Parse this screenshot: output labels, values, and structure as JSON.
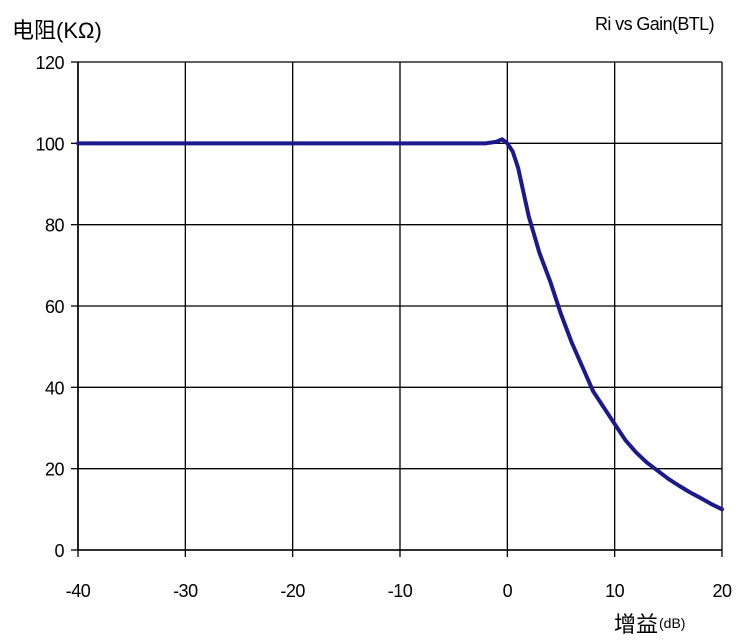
{
  "chart_data": {
    "type": "line",
    "title": "Ri vs Gain(BTL)",
    "ylabel": "电阻(KΩ)",
    "xlabel_main": "增益",
    "xlabel_unit": "(dB)",
    "xlim": [
      -40,
      20
    ],
    "ylim": [
      0,
      120
    ],
    "xticks": [
      -40,
      -30,
      -20,
      -10,
      0,
      10,
      20
    ],
    "yticks": [
      0,
      20,
      40,
      60,
      80,
      100,
      120
    ],
    "xtick_labels": [
      "-40",
      "-30",
      "-20",
      "-10",
      "0",
      "10",
      "20"
    ],
    "ytick_labels": [
      "0",
      "20",
      "40",
      "60",
      "80",
      "100",
      "120"
    ],
    "grid": true,
    "line_color": "#1a1a8c",
    "series": [
      {
        "points": [
          [
            -40,
            100
          ],
          [
            -30,
            100
          ],
          [
            -20,
            100
          ],
          [
            -10,
            100
          ],
          [
            -2,
            100
          ],
          [
            -1,
            100.4
          ],
          [
            -0.5,
            101
          ],
          [
            0,
            100
          ],
          [
            0.5,
            98
          ],
          [
            1,
            94
          ],
          [
            1.5,
            88
          ],
          [
            2,
            82
          ],
          [
            3,
            73
          ],
          [
            4,
            66
          ],
          [
            5,
            58
          ],
          [
            6,
            51
          ],
          [
            7,
            45
          ],
          [
            8,
            39
          ],
          [
            9,
            35
          ],
          [
            10,
            31
          ],
          [
            11,
            27
          ],
          [
            12,
            24
          ],
          [
            13,
            21.5
          ],
          [
            14,
            19.5
          ],
          [
            15,
            17.5
          ],
          [
            16,
            15.8
          ],
          [
            17,
            14.2
          ],
          [
            18,
            12.8
          ],
          [
            19,
            11.3
          ],
          [
            20,
            10
          ]
        ]
      }
    ]
  }
}
